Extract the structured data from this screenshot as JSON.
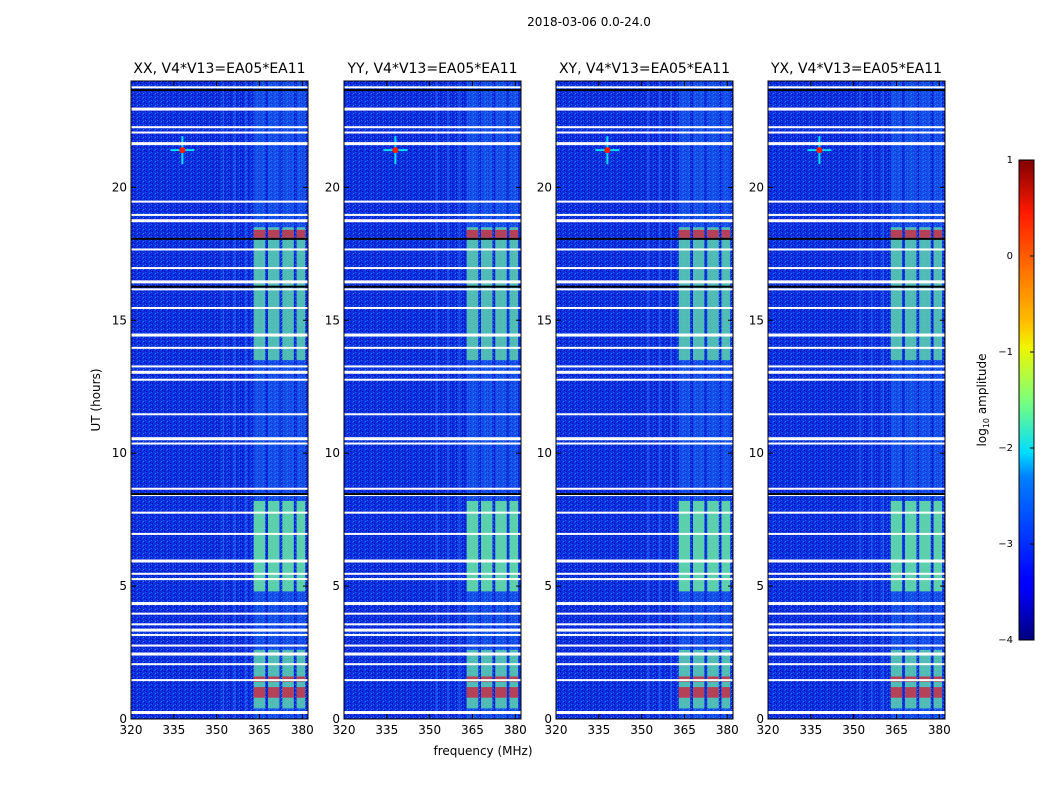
{
  "figure_title": "2018-03-06 0.0-24.0",
  "chart_data": {
    "type": "heatmap",
    "suptitle": "2018-03-06 0.0-24.0",
    "xlabel": "frequency (MHz)",
    "ylabel": "UT (hours)",
    "xlim": [
      320,
      382
    ],
    "ylim": [
      0,
      24
    ],
    "xticks": [
      320,
      335,
      350,
      365,
      380
    ],
    "yticks": [
      0,
      5,
      10,
      15,
      20
    ],
    "panels": [
      {
        "title": "XX, V4*V13=EA05*EA11",
        "polarization": "XX"
      },
      {
        "title": "YY, V4*V13=EA05*EA11",
        "polarization": "YY"
      },
      {
        "title": "XY, V4*V13=EA05*EA11",
        "polarization": "XY"
      },
      {
        "title": "YX, V4*V13=EA05*EA11",
        "polarization": "YX"
      }
    ],
    "colorbar": {
      "label_main": "log",
      "label_sub": "10",
      "label_tail": " amplitude",
      "ticks": [
        1,
        0,
        -1,
        -2,
        -3,
        -4
      ],
      "tick_labels": [
        "1",
        "0",
        "−1",
        "−2",
        "−3",
        "−4"
      ],
      "range": [
        -4,
        1
      ],
      "colormap": "jet"
    },
    "features": {
      "rfi_channels_mhz": [
        [
          363,
          367
        ],
        [
          368,
          372
        ],
        [
          373,
          377
        ],
        [
          378,
          381
        ]
      ],
      "rfi_active_ut": [
        [
          0.4,
          2.6
        ],
        [
          4.8,
          8.2
        ],
        [
          13.5,
          18.5
        ]
      ],
      "rfi_strong_ut": [
        [
          0.8,
          1.2
        ],
        [
          1.4,
          1.6
        ],
        [
          18.1,
          18.4
        ]
      ],
      "point_source": {
        "freq_mhz": 338,
        "ut_hours": 21.4
      },
      "flagged_rows_ut": [
        0.3,
        1.5,
        2.1,
        2.5,
        2.8,
        3.2,
        3.4,
        3.6,
        4.0,
        4.4,
        5.3,
        5.5,
        6.0,
        7.0,
        7.8,
        8.5,
        8.7,
        10.4,
        10.6,
        11.5,
        12.8,
        13.1,
        13.3,
        14.0,
        14.5,
        15.5,
        16.2,
        16.5,
        17.0,
        17.7,
        18.8,
        19.0,
        19.5,
        21.7,
        22.1,
        22.3,
        23.0,
        23.8
      ]
    }
  }
}
